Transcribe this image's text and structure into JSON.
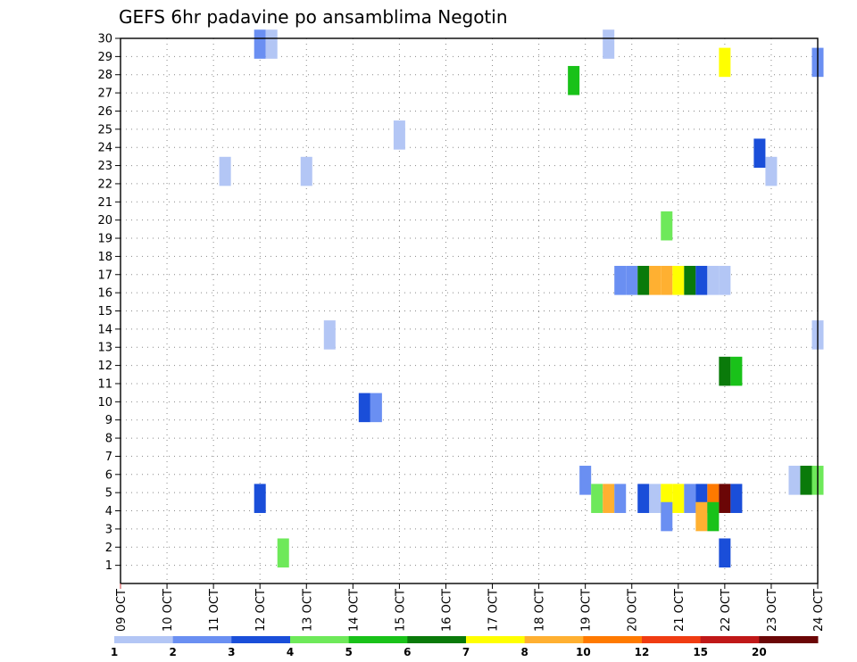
{
  "chart_data": {
    "type": "heatmap",
    "title": "GEFS 6hr padavine po ansamblima Negotin",
    "x_tick_labels": [
      "09 OCT",
      "10 OCT",
      "11 OCT",
      "12 OCT",
      "13 OCT",
      "14 OCT",
      "15 OCT",
      "16 OCT",
      "17 OCT",
      "18 OCT",
      "19 OCT",
      "20 OCT",
      "21 OCT",
      "22 OCT",
      "23 OCT",
      "24 OCT"
    ],
    "x_day_offset_range": [
      0,
      15
    ],
    "y_range": [
      0,
      30
    ],
    "y_ticks": [
      1,
      2,
      3,
      4,
      5,
      6,
      7,
      8,
      9,
      10,
      11,
      12,
      13,
      14,
      15,
      16,
      17,
      18,
      19,
      20,
      21,
      22,
      23,
      24,
      25,
      26,
      27,
      28,
      29,
      30
    ],
    "grid": true,
    "color_levels": [
      {
        "color": "#b3c6f5"
      },
      {
        "color": "#6a8ff2"
      },
      {
        "color": "#1a4ed9"
      },
      {
        "color": "#6ee95a"
      },
      {
        "color": "#19c219"
      },
      {
        "color": "#0a7a0a"
      },
      {
        "color": "#ffff00"
      },
      {
        "color": "#ffb031"
      },
      {
        "color": "#ff7a00"
      },
      {
        "color": "#f03c12"
      },
      {
        "color": "#c01818"
      },
      {
        "color": "#6b0606"
      }
    ],
    "colorbar_labels": [
      {
        "text": "1",
        "pos": 0
      },
      {
        "text": "2",
        "pos": 1
      },
      {
        "text": "3",
        "pos": 2
      },
      {
        "text": "4",
        "pos": 3
      },
      {
        "text": "5",
        "pos": 4
      },
      {
        "text": "6",
        "pos": 5
      },
      {
        "text": "7",
        "pos": 6
      },
      {
        "text": "8",
        "pos": 7
      },
      {
        "text": "10",
        "pos": 8
      },
      {
        "text": "12",
        "pos": 9
      },
      {
        "text": "15",
        "pos": 10
      },
      {
        "text": "20",
        "pos": 11
      }
    ],
    "cells": [
      {
        "d": 3.0,
        "m": 30,
        "c": 1
      },
      {
        "d": 3.25,
        "m": 30,
        "c": 0
      },
      {
        "d": 10.5,
        "m": 30,
        "c": 0
      },
      {
        "d": 13.0,
        "m": 29,
        "c": 6
      },
      {
        "d": 15.0,
        "m": 29,
        "c": 1
      },
      {
        "d": 9.75,
        "m": 28,
        "c": 4
      },
      {
        "d": 6.0,
        "m": 25,
        "c": 0
      },
      {
        "d": 13.75,
        "m": 24,
        "c": 2
      },
      {
        "d": 2.25,
        "m": 23,
        "c": 0
      },
      {
        "d": 4.0,
        "m": 23,
        "c": 0
      },
      {
        "d": 14.0,
        "m": 23,
        "c": 0
      },
      {
        "d": 11.75,
        "m": 20,
        "c": 3
      },
      {
        "d": 10.75,
        "m": 17,
        "c": 1
      },
      {
        "d": 11.0,
        "m": 17,
        "c": 1
      },
      {
        "d": 11.25,
        "m": 17,
        "c": 5
      },
      {
        "d": 11.5,
        "m": 17,
        "c": 7
      },
      {
        "d": 11.75,
        "m": 17,
        "c": 7
      },
      {
        "d": 12.0,
        "m": 17,
        "c": 6
      },
      {
        "d": 12.25,
        "m": 17,
        "c": 5
      },
      {
        "d": 12.5,
        "m": 17,
        "c": 2
      },
      {
        "d": 12.75,
        "m": 17,
        "c": 0
      },
      {
        "d": 13.0,
        "m": 17,
        "c": 0
      },
      {
        "d": 4.5,
        "m": 14,
        "c": 0
      },
      {
        "d": 15.0,
        "m": 14,
        "c": 0
      },
      {
        "d": 13.0,
        "m": 12,
        "c": 5
      },
      {
        "d": 13.25,
        "m": 12,
        "c": 4
      },
      {
        "d": 5.25,
        "m": 10,
        "c": 2
      },
      {
        "d": 5.5,
        "m": 10,
        "c": 1
      },
      {
        "d": 10.0,
        "m": 6,
        "c": 1
      },
      {
        "d": 14.5,
        "m": 6,
        "c": 0
      },
      {
        "d": 14.75,
        "m": 6,
        "c": 5
      },
      {
        "d": 15.0,
        "m": 6,
        "c": 3
      },
      {
        "d": 3.0,
        "m": 5,
        "c": 2
      },
      {
        "d": 10.25,
        "m": 5,
        "c": 3
      },
      {
        "d": 10.5,
        "m": 5,
        "c": 7
      },
      {
        "d": 10.75,
        "m": 5,
        "c": 1
      },
      {
        "d": 11.25,
        "m": 5,
        "c": 2
      },
      {
        "d": 11.5,
        "m": 5,
        "c": 0
      },
      {
        "d": 11.75,
        "m": 5,
        "c": 6
      },
      {
        "d": 12.0,
        "m": 5,
        "c": 6
      },
      {
        "d": 12.25,
        "m": 5,
        "c": 1
      },
      {
        "d": 12.5,
        "m": 5,
        "c": 2
      },
      {
        "d": 12.75,
        "m": 5,
        "c": 8
      },
      {
        "d": 13.0,
        "m": 5,
        "c": 11
      },
      {
        "d": 13.25,
        "m": 5,
        "c": 2
      },
      {
        "d": 11.75,
        "m": 4,
        "c": 1
      },
      {
        "d": 12.5,
        "m": 4,
        "c": 7
      },
      {
        "d": 12.75,
        "m": 4,
        "c": 4
      },
      {
        "d": 3.5,
        "m": 2,
        "c": 3
      },
      {
        "d": 13.0,
        "m": 2,
        "c": 2
      }
    ]
  }
}
